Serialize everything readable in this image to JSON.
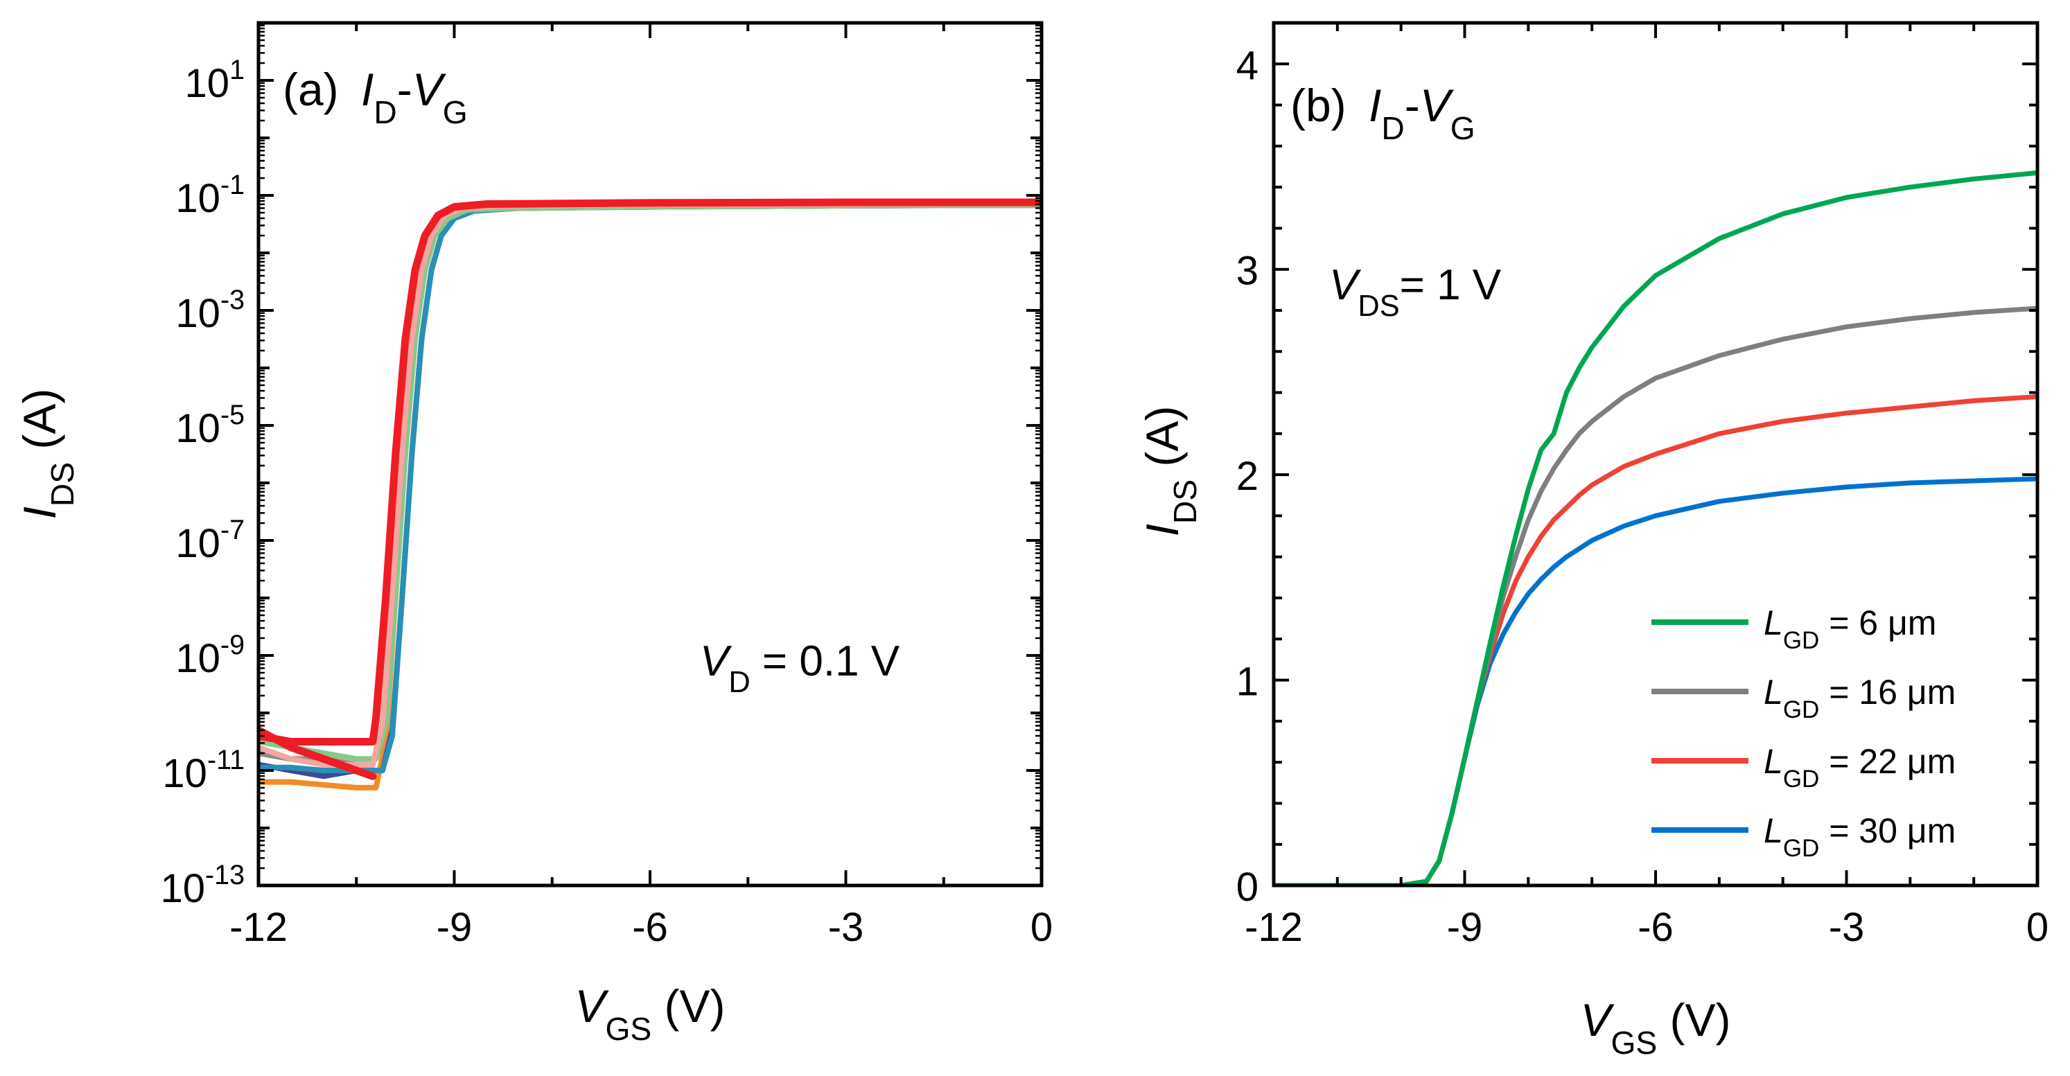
{
  "chart_data": [
    {
      "type": "line",
      "panel": "(a)",
      "title_parts": {
        "i": "I",
        "d": "D",
        "dash": "-",
        "v": "V",
        "g": "G"
      },
      "xlabel": {
        "var": "V",
        "sub": "GS",
        "unit": " (V)"
      },
      "ylabel": {
        "var": "I",
        "sub": "DS",
        "unit": " (A)"
      },
      "y_scale": "log",
      "xlim": [
        -12,
        0
      ],
      "ylim_exp": [
        -13,
        2
      ],
      "x_ticks": [
        -12,
        -9,
        -6,
        -3,
        0
      ],
      "x_tick_labels": [
        "-12",
        "-9",
        "-6",
        "-3",
        "0"
      ],
      "y_ticks_exp": [
        -13,
        -11,
        -9,
        -7,
        -5,
        -3,
        -1,
        1
      ],
      "y_tick_base": "10",
      "y_tick_exps": [
        "-13",
        "-11",
        "-9",
        "-7",
        "-5",
        "-3",
        "-1",
        "1"
      ],
      "annotation": {
        "var": "V",
        "sub": "D",
        "rest": " = 0.1 V"
      },
      "series": [
        {
          "name": "orange",
          "color": "#f28c28",
          "x": [
            -12,
            -11.5,
            -11,
            -10.5,
            -10.2,
            -10.05,
            -9.9,
            -9.75,
            -9.6,
            -9.45,
            -9.3,
            -9.1,
            -8.8,
            -8,
            -6,
            -3,
            0
          ],
          "log10_y": [
            -11.2,
            -11.2,
            -11.25,
            -11.3,
            -11.3,
            -10.5,
            -8,
            -5.5,
            -3.5,
            -2.3,
            -1.7,
            -1.4,
            -1.25,
            -1.2,
            -1.18,
            -1.17,
            -1.16
          ]
        },
        {
          "name": "navy",
          "color": "#3b4a9a",
          "x": [
            -12,
            -11.5,
            -11,
            -10.5,
            -10.1,
            -9.95,
            -9.8,
            -9.65,
            -9.5,
            -9.35,
            -9.2,
            -9.0,
            -8.7,
            -8,
            -6,
            -3,
            0
          ],
          "log10_y": [
            -10.9,
            -11.0,
            -11.1,
            -11.0,
            -11.0,
            -10.3,
            -8,
            -5.5,
            -3.5,
            -2.3,
            -1.7,
            -1.4,
            -1.27,
            -1.22,
            -1.2,
            -1.18,
            -1.17
          ]
        },
        {
          "name": "teal",
          "color": "#2a8fb5",
          "x": [
            -12,
            -11.5,
            -11,
            -10.5,
            -10.1,
            -9.95,
            -9.8,
            -9.65,
            -9.5,
            -9.35,
            -9.2,
            -9.0,
            -8.7,
            -8,
            -6,
            -3,
            0
          ],
          "log10_y": [
            -10.95,
            -10.95,
            -11.0,
            -11.0,
            -11.0,
            -10.4,
            -8,
            -5.5,
            -3.5,
            -2.3,
            -1.7,
            -1.4,
            -1.27,
            -1.22,
            -1.2,
            -1.18,
            -1.17
          ]
        },
        {
          "name": "green",
          "color": "#86c98a",
          "x": [
            -12,
            -11.5,
            -11,
            -10.5,
            -10.2,
            -10.05,
            -9.9,
            -9.75,
            -9.6,
            -9.45,
            -9.3,
            -9.1,
            -8.8,
            -8,
            -6,
            -3,
            0
          ],
          "log10_y": [
            -10.5,
            -10.6,
            -10.7,
            -10.8,
            -10.8,
            -10.2,
            -8,
            -5.5,
            -3.5,
            -2.3,
            -1.7,
            -1.4,
            -1.25,
            -1.22,
            -1.2,
            -1.18,
            -1.17
          ]
        },
        {
          "name": "gray",
          "color": "#8c8c8c",
          "x": [
            -12,
            -11.5,
            -11,
            -10.5,
            -10.25,
            -10.1,
            -9.95,
            -9.8,
            -9.65,
            -9.5,
            -9.35,
            -9.15,
            -8.85,
            -8,
            -6,
            -3,
            0
          ],
          "log10_y": [
            -10.7,
            -10.8,
            -10.8,
            -10.9,
            -10.9,
            -10.2,
            -8,
            -5.5,
            -3.5,
            -2.3,
            -1.7,
            -1.35,
            -1.22,
            -1.18,
            -1.16,
            -1.15,
            -1.14
          ]
        },
        {
          "name": "pink",
          "color": "#f2a7a0",
          "x": [
            -12,
            -11.5,
            -11,
            -10.5,
            -10.25,
            -10.1,
            -9.95,
            -9.8,
            -9.65,
            -9.5,
            -9.35,
            -9.15,
            -8.85,
            -8,
            -6,
            -3,
            0
          ],
          "log10_y": [
            -10.6,
            -10.8,
            -10.9,
            -10.9,
            -10.9,
            -10.2,
            -8,
            -5.5,
            -3.5,
            -2.3,
            -1.7,
            -1.35,
            -1.22,
            -1.18,
            -1.16,
            -1.15,
            -1.14
          ]
        },
        {
          "name": "red",
          "color": "#ee1d25",
          "x": [
            -12,
            -11.5,
            -11,
            -10.5,
            -10.25,
            -10.2,
            -10.05,
            -9.9,
            -9.75,
            -9.6,
            -9.45,
            -9.25,
            -9.0,
            -8.5,
            -6,
            -3,
            0
          ],
          "log10_y": [
            -10.4,
            -10.5,
            -10.5,
            -10.5,
            -10.5,
            -10.1,
            -8,
            -5.5,
            -3.5,
            -2.3,
            -1.7,
            -1.35,
            -1.2,
            -1.15,
            -1.13,
            -1.12,
            -1.12
          ]
        },
        {
          "name": "red-off-branch",
          "color": "#ee1d25",
          "x": [
            -12,
            -11.5,
            -11,
            -10.25
          ],
          "log10_y": [
            -10.3,
            -10.6,
            -10.8,
            -11.1
          ]
        }
      ]
    },
    {
      "type": "line",
      "panel": "(b)",
      "title_parts": {
        "i": "I",
        "d": "D",
        "dash": "-",
        "v": "V",
        "g": "G"
      },
      "xlabel": {
        "var": "V",
        "sub": "GS",
        "unit": " (V)"
      },
      "ylabel": {
        "var": "I",
        "sub": "DS",
        "unit": " (A)"
      },
      "y_scale": "linear",
      "xlim": [
        -12,
        0
      ],
      "ylim": [
        0,
        4.2
      ],
      "x_ticks": [
        -12,
        -9,
        -6,
        -3,
        0
      ],
      "x_tick_labels": [
        "-12",
        "-9",
        "-6",
        "-3",
        "0"
      ],
      "y_ticks": [
        0,
        1,
        2,
        3,
        4
      ],
      "y_tick_labels": [
        "0",
        "1",
        "2",
        "3",
        "4"
      ],
      "annotation": {
        "var": "V",
        "sub": "DS",
        "rest": "= 1 V"
      },
      "legend_position": "bottom-right",
      "series": [
        {
          "name": "L_GD = 6 μm",
          "label": {
            "var": "L",
            "sub": "GD",
            "rest": " = 6 μm"
          },
          "color": "#00a651",
          "x": [
            -12,
            -10,
            -9.6,
            -9.4,
            -9.2,
            -9.0,
            -8.8,
            -8.6,
            -8.4,
            -8.2,
            -8.0,
            -7.8,
            -7.6,
            -7.4,
            -7.2,
            -7.0,
            -6.5,
            -6.0,
            -5.0,
            -4.0,
            -3.0,
            -2.0,
            -1.0,
            0
          ],
          "y": [
            0,
            0,
            0.02,
            0.12,
            0.35,
            0.62,
            0.9,
            1.18,
            1.45,
            1.7,
            1.93,
            2.12,
            2.2,
            2.4,
            2.52,
            2.62,
            2.82,
            2.97,
            3.15,
            3.27,
            3.35,
            3.4,
            3.44,
            3.47
          ]
        },
        {
          "name": "L_GD = 16 μm",
          "label": {
            "var": "L",
            "sub": "GD",
            "rest": " = 16 μm"
          },
          "color": "#7f7f7f",
          "x": [
            -12,
            -10,
            -9.6,
            -9.4,
            -9.2,
            -9.0,
            -8.8,
            -8.6,
            -8.4,
            -8.2,
            -8.0,
            -7.8,
            -7.6,
            -7.4,
            -7.2,
            -7.0,
            -6.5,
            -6.0,
            -5.0,
            -4.0,
            -3.0,
            -2.0,
            -1.0,
            0
          ],
          "y": [
            0,
            0,
            0.02,
            0.12,
            0.35,
            0.62,
            0.9,
            1.15,
            1.4,
            1.6,
            1.78,
            1.92,
            2.03,
            2.12,
            2.2,
            2.26,
            2.38,
            2.47,
            2.58,
            2.66,
            2.72,
            2.76,
            2.79,
            2.81
          ]
        },
        {
          "name": "L_GD = 22 μm",
          "label": {
            "var": "L",
            "sub": "GD",
            "rest": " = 22 μm"
          },
          "color": "#ef4136",
          "x": [
            -12,
            -10,
            -9.6,
            -9.4,
            -9.2,
            -9.0,
            -8.8,
            -8.6,
            -8.4,
            -8.2,
            -8.0,
            -7.8,
            -7.6,
            -7.4,
            -7.2,
            -7.0,
            -6.5,
            -6.0,
            -5.0,
            -4.0,
            -3.0,
            -2.0,
            -1.0,
            0
          ],
          "y": [
            0,
            0,
            0.02,
            0.12,
            0.35,
            0.62,
            0.9,
            1.12,
            1.32,
            1.48,
            1.6,
            1.7,
            1.78,
            1.84,
            1.9,
            1.95,
            2.04,
            2.1,
            2.2,
            2.26,
            2.3,
            2.33,
            2.36,
            2.38
          ]
        },
        {
          "name": "L_GD = 30 μm",
          "label": {
            "var": "L",
            "sub": "GD",
            "rest": " = 30 μm"
          },
          "color": "#0072ce",
          "x": [
            -12,
            -10,
            -9.6,
            -9.4,
            -9.2,
            -9.0,
            -8.8,
            -8.6,
            -8.4,
            -8.2,
            -8.0,
            -7.8,
            -7.6,
            -7.4,
            -7.2,
            -7.0,
            -6.5,
            -6.0,
            -5.0,
            -4.0,
            -3.0,
            -2.0,
            -1.0,
            0
          ],
          "y": [
            0,
            0,
            0.02,
            0.12,
            0.35,
            0.62,
            0.88,
            1.08,
            1.22,
            1.33,
            1.42,
            1.49,
            1.55,
            1.6,
            1.64,
            1.68,
            1.75,
            1.8,
            1.87,
            1.91,
            1.94,
            1.96,
            1.97,
            1.98
          ]
        }
      ]
    }
  ]
}
